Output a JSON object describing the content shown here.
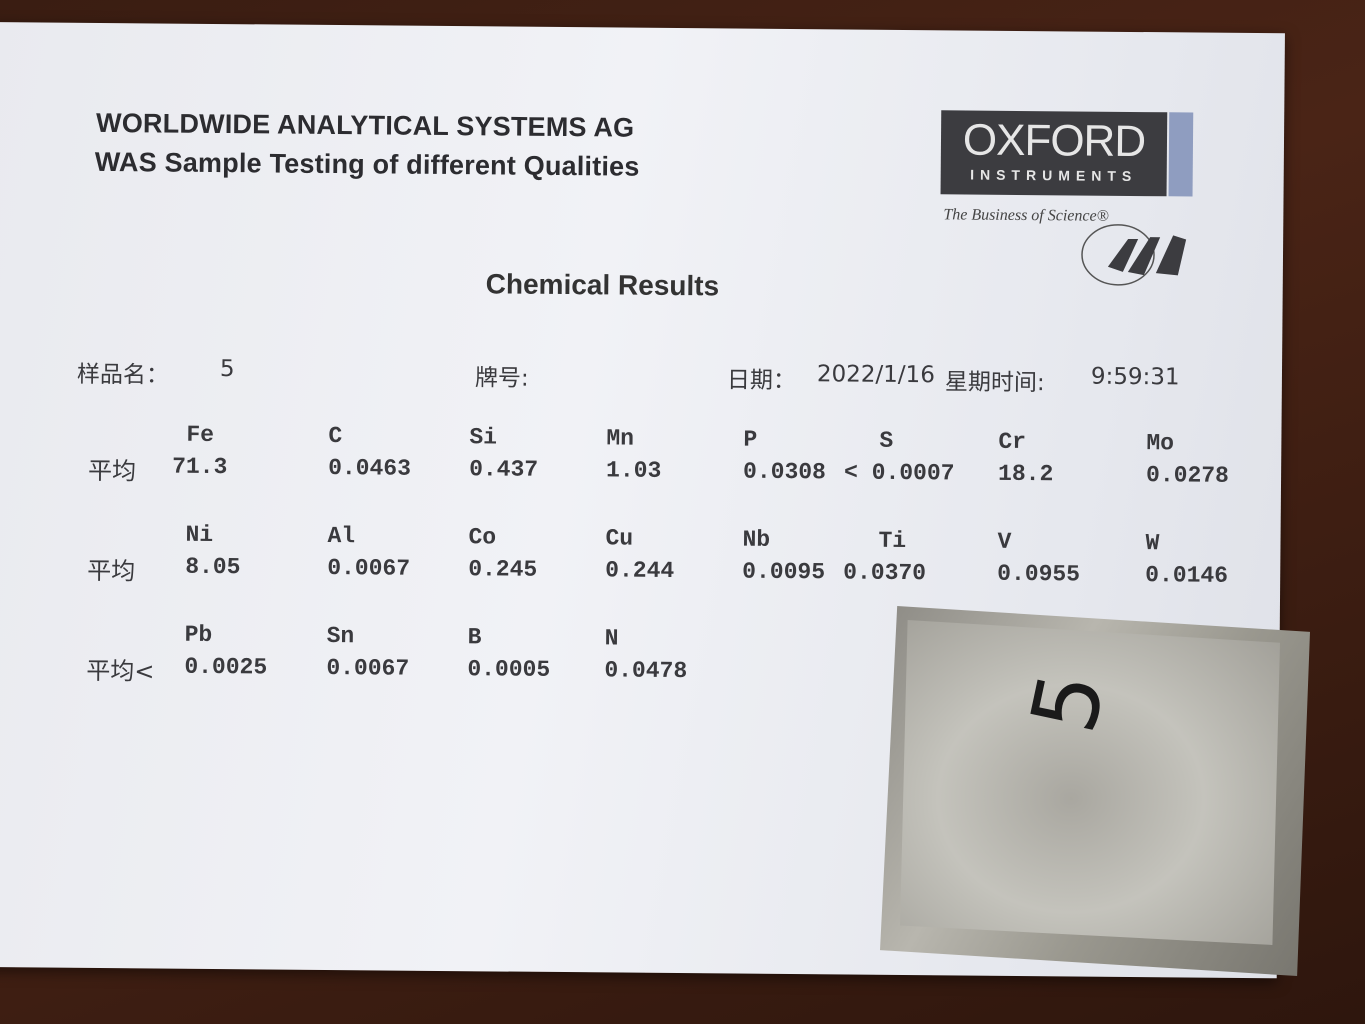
{
  "header": {
    "company": "WORLDWIDE ANALYTICAL SYSTEMS AG",
    "subtitle": "WAS Sample Testing of different Qualities"
  },
  "logo": {
    "main": "OXFORD",
    "sub": "INSTRUMENTS",
    "tagline": "The Business of Science®",
    "mark": "WAS",
    "colors": {
      "box": "#3c3c40",
      "side": "#8f9dc0"
    }
  },
  "title": "Chemical Results",
  "meta": {
    "sample_label": "样品名：",
    "sample_value": "5",
    "grade_label": "牌号:",
    "date_label": "日期：",
    "date_value": "2022/1/16",
    "time_label": "星期时间:",
    "time_value": "9:59:31"
  },
  "results": [
    {
      "row_label": "平均",
      "cells": [
        {
          "element": "Fe",
          "value": "71.3"
        },
        {
          "element": "C",
          "value": "0.0463"
        },
        {
          "element": "Si",
          "value": "0.437"
        },
        {
          "element": "Mn",
          "value": "1.03"
        },
        {
          "element": "P",
          "value": "0.0308"
        },
        {
          "element": "S",
          "value": "< 0.0007"
        },
        {
          "element": "Cr",
          "value": "18.2"
        },
        {
          "element": "Mo",
          "value": "0.0278"
        }
      ]
    },
    {
      "row_label": "平均",
      "cells": [
        {
          "element": "Ni",
          "value": "8.05"
        },
        {
          "element": "Al",
          "value": "0.0067"
        },
        {
          "element": "Co",
          "value": "0.245"
        },
        {
          "element": "Cu",
          "value": "0.244"
        },
        {
          "element": "Nb",
          "value": "0.0095"
        },
        {
          "element": "Ti",
          "value": "0.0370"
        },
        {
          "element": "V",
          "value": "0.0955"
        },
        {
          "element": "W",
          "value": "0.0146"
        }
      ]
    },
    {
      "row_label": "平均<",
      "cells": [
        {
          "element": "Pb",
          "value": "0.0025"
        },
        {
          "element": "Sn",
          "value": "0.0067"
        },
        {
          "element": "B",
          "value": "0.0005"
        },
        {
          "element": "N",
          "value": "0.0478"
        }
      ]
    }
  ],
  "sample_tray": {
    "handwritten_label": "5"
  }
}
